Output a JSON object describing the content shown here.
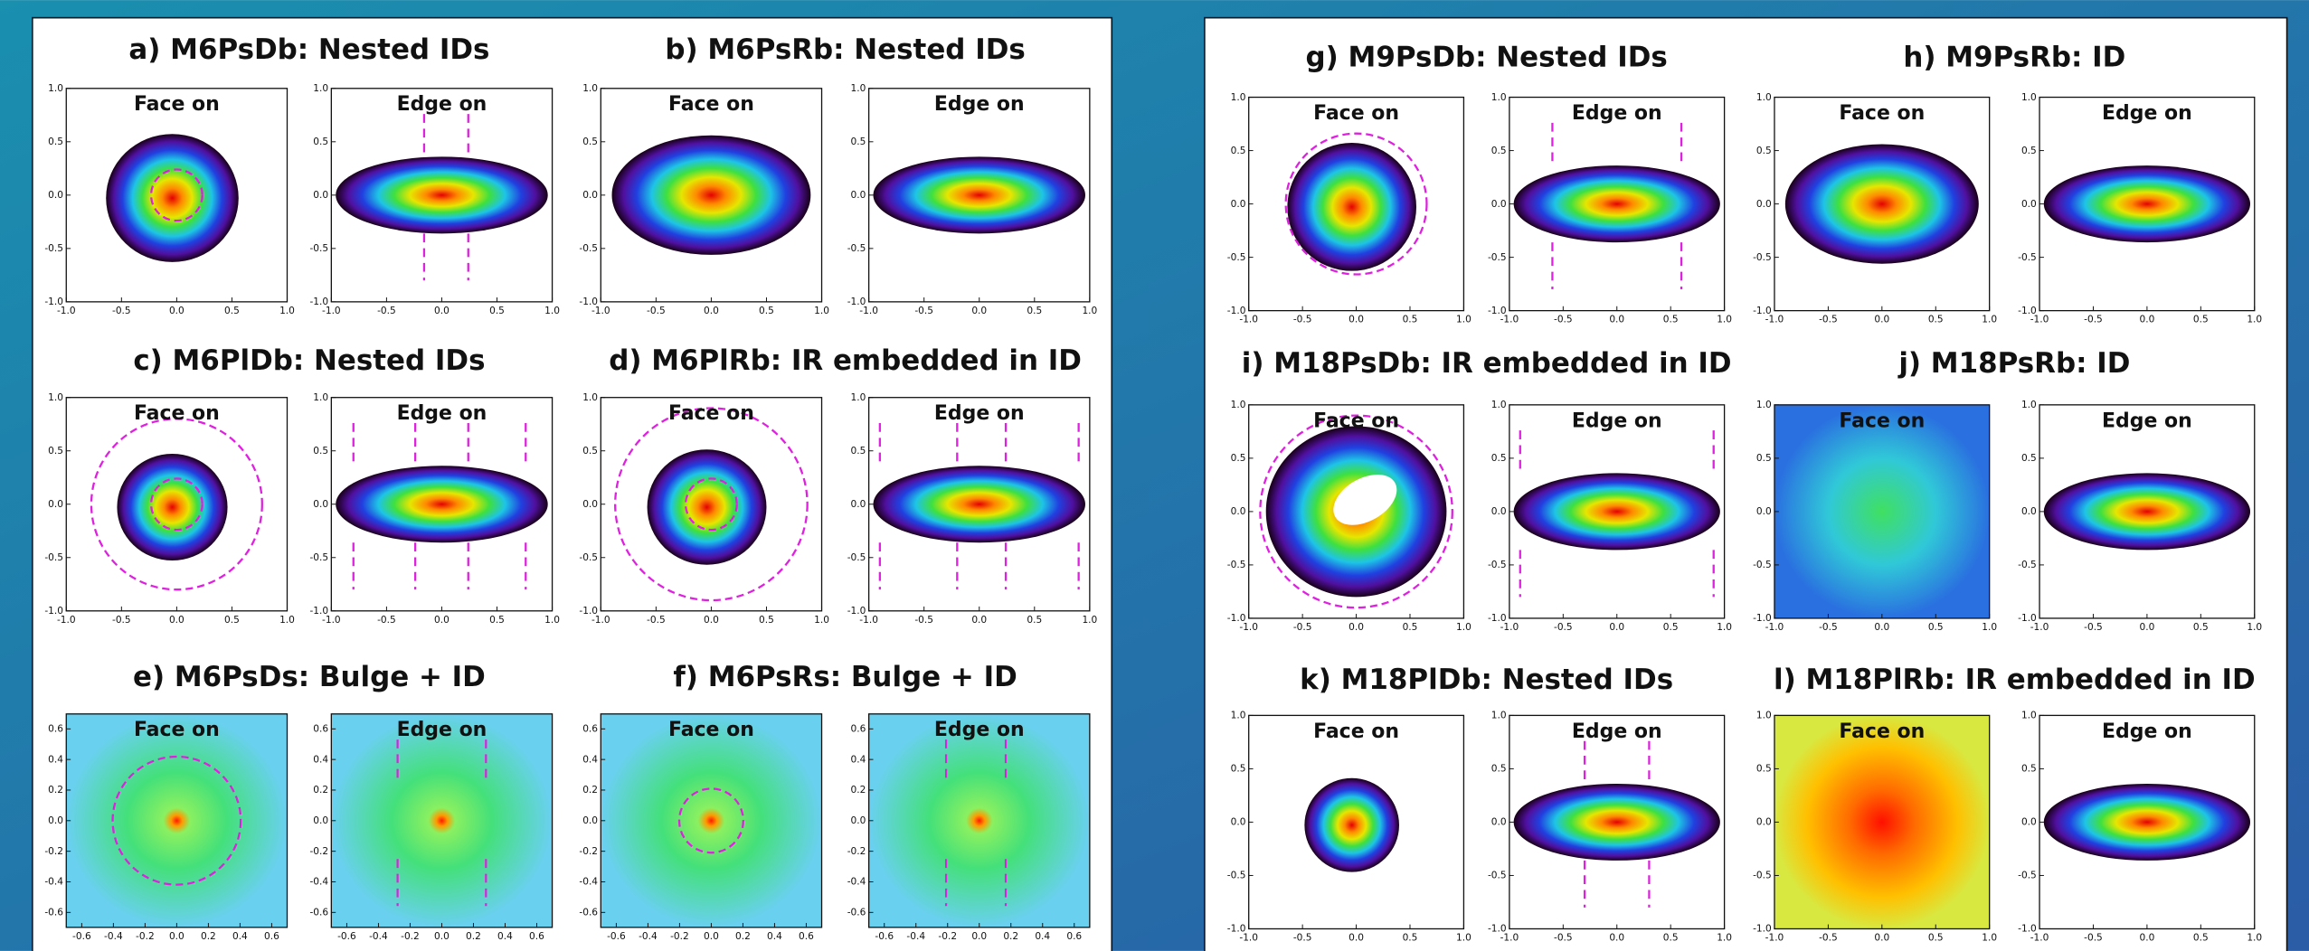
{
  "panels": [
    {
      "title": "a) M6PsDb: Nested IDs",
      "plots": [
        {
          "label": "Face on"
        },
        {
          "label": "Edge on"
        }
      ],
      "xticks": [
        "-1.0",
        "-0.5",
        "0.0",
        "0.5",
        "1.0"
      ],
      "yticks": [
        "-1.0",
        "-0.5",
        "0.0",
        "0.5",
        "1.0"
      ]
    },
    {
      "title": "b) M6PsRb: Nested IDs",
      "plots": [
        {
          "label": "Face on"
        },
        {
          "label": "Edge on"
        }
      ],
      "xticks": [
        "-1.0",
        "-0.5",
        "0.0",
        "0.5",
        "1.0"
      ],
      "yticks": [
        "-1.0",
        "-0.5",
        "0.0",
        "0.5",
        "1.0"
      ]
    },
    {
      "title": "c) M6PlDb: Nested IDs",
      "plots": [
        {
          "label": "Face on"
        },
        {
          "label": "Edge on"
        }
      ],
      "xticks": [
        "-1.0",
        "-0.5",
        "0.0",
        "0.5",
        "1.0"
      ],
      "yticks": [
        "-1.0",
        "-0.5",
        "0.0",
        "0.5",
        "1.0"
      ]
    },
    {
      "title": "d) M6PlRb: IR embedded in ID",
      "plots": [
        {
          "label": "Face on"
        },
        {
          "label": "Edge on"
        }
      ],
      "xticks": [
        "-1.0",
        "-0.5",
        "0.0",
        "0.5",
        "1.0"
      ],
      "yticks": [
        "-1.0",
        "-0.5",
        "0.0",
        "0.5",
        "1.0"
      ]
    },
    {
      "title": "e) M6PsDs: Bulge + ID",
      "plots": [
        {
          "label": "Face on"
        },
        {
          "label": "Edge on"
        }
      ],
      "xticks": [
        "-0.6",
        "-0.4",
        "-0.2",
        "0.0",
        "0.2",
        "0.4",
        "0.6"
      ],
      "yticks": [
        "-0.6",
        "-0.4",
        "-0.2",
        "0.0",
        "0.2",
        "0.4",
        "0.6"
      ]
    },
    {
      "title": "f) M6PsRs: Bulge + ID",
      "plots": [
        {
          "label": "Face on"
        },
        {
          "label": "Edge on"
        }
      ],
      "xticks": [
        "-0.6",
        "-0.4",
        "-0.2",
        "0.0",
        "0.2",
        "0.4",
        "0.6"
      ],
      "yticks": [
        "-0.6",
        "-0.4",
        "-0.2",
        "0.0",
        "0.2",
        "0.4",
        "0.6"
      ]
    },
    {
      "title": "g) M9PsDb: Nested IDs",
      "plots": [
        {
          "label": "Face on"
        },
        {
          "label": "Edge on"
        }
      ],
      "xticks": [
        "-1.0",
        "-0.5",
        "0.0",
        "0.5",
        "1.0"
      ],
      "yticks": [
        "-1.0",
        "-0.5",
        "0.0",
        "0.5",
        "1.0"
      ]
    },
    {
      "title": "h) M9PsRb: ID",
      "plots": [
        {
          "label": "Face on"
        },
        {
          "label": "Edge on"
        }
      ],
      "xticks": [
        "-1.0",
        "-0.5",
        "0.0",
        "0.5",
        "1.0"
      ],
      "yticks": [
        "-1.0",
        "-0.5",
        "0.0",
        "0.5",
        "1.0"
      ]
    },
    {
      "title": "i) M18PsDb: IR embedded in ID",
      "plots": [
        {
          "label": "Face on"
        },
        {
          "label": "Edge on"
        }
      ],
      "xticks": [
        "-1.0",
        "-0.5",
        "0.0",
        "0.5",
        "1.0"
      ],
      "yticks": [
        "-1.0",
        "-0.5",
        "0.0",
        "0.5",
        "1.0"
      ]
    },
    {
      "title": "j) M18PsRb: ID",
      "plots": [
        {
          "label": "Face on"
        },
        {
          "label": "Edge on"
        }
      ],
      "xticks": [
        "-1.0",
        "-0.5",
        "0.0",
        "0.5",
        "1.0"
      ],
      "yticks": [
        "-1.0",
        "-0.5",
        "0.0",
        "0.5",
        "1.0"
      ]
    },
    {
      "title": "k) M18PlDb: Nested IDs",
      "plots": [
        {
          "label": "Face on"
        },
        {
          "label": "Edge on"
        }
      ],
      "xticks": [
        "-1.0",
        "-0.5",
        "0.0",
        "0.5",
        "1.0"
      ],
      "yticks": [
        "-1.0",
        "-0.5",
        "0.0",
        "0.5",
        "1.0"
      ]
    },
    {
      "title": "l) M18PlRb: IR embedded in ID",
      "plots": [
        {
          "label": "Face on"
        },
        {
          "label": "Edge on"
        }
      ],
      "xticks": [
        "-1.0",
        "-0.5",
        "0.0",
        "0.5",
        "1.0"
      ],
      "yticks": [
        "-1.0",
        "-0.5",
        "0.0",
        "0.5",
        "1.0"
      ]
    }
  ]
}
